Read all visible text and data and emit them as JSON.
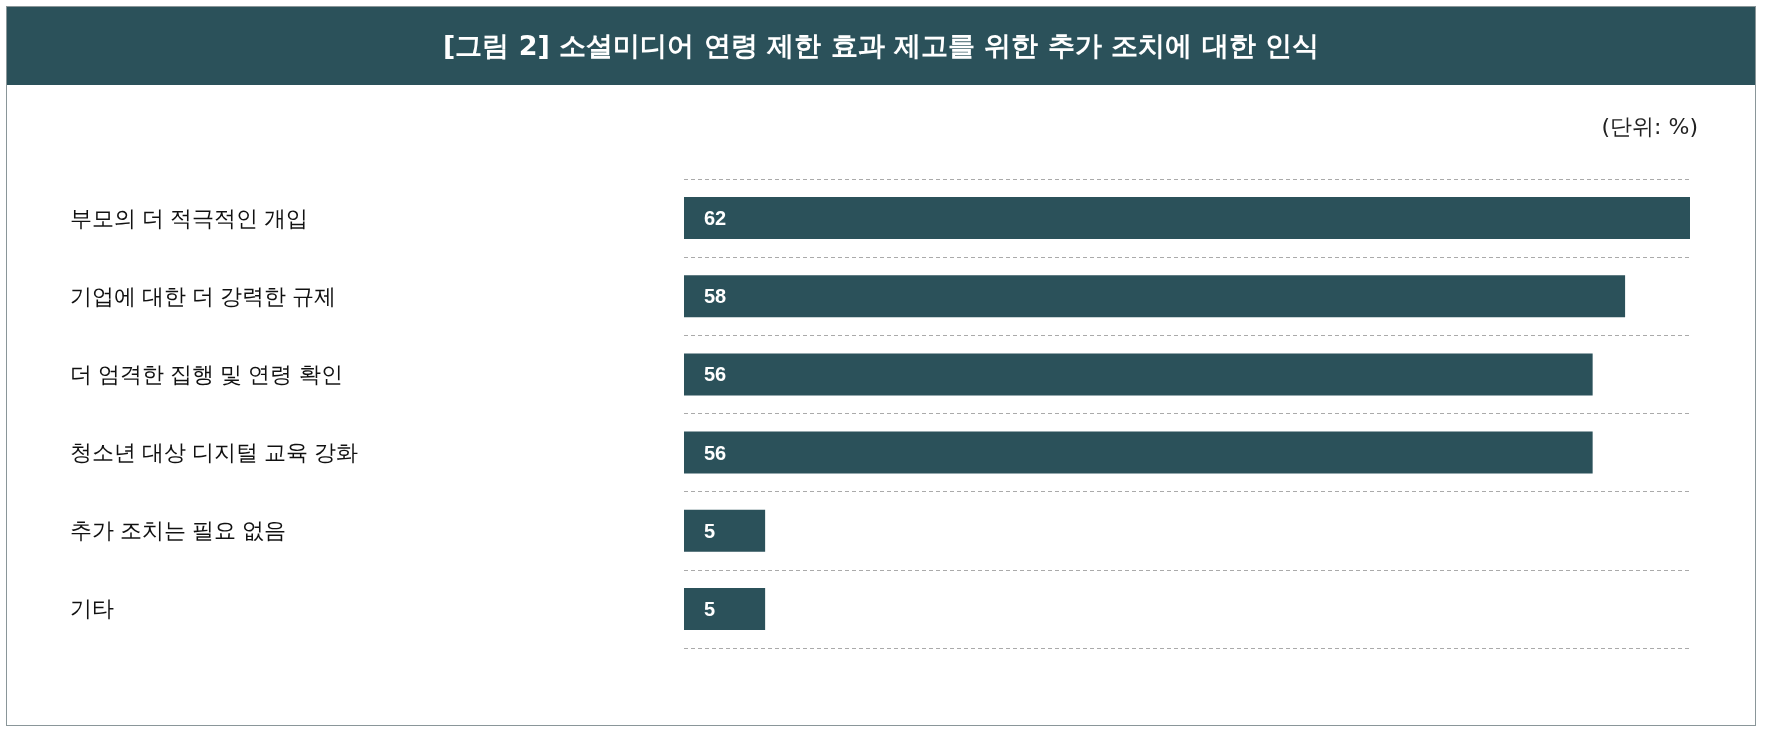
{
  "chart_data": {
    "type": "bar",
    "orientation": "horizontal",
    "title": "[그림 2] 소셜미디어 연령 제한 효과 제고를 위한 추가 조치에 대한 인식",
    "annotations": [
      "(단위: %)"
    ],
    "categories": [
      "부모의 더 적극적인 개입",
      "기업에 대한 더 강력한 규제",
      "더 엄격한 집행 및 연령 확인",
      "청소년 대상 디지털 교육 강화",
      "추가 조치는 필요 없음",
      "기타"
    ],
    "values": [
      62,
      58,
      56,
      56,
      5,
      5
    ],
    "color": "#2b515a",
    "data_labels": true,
    "grid": true,
    "tick_labels": "y"
  }
}
